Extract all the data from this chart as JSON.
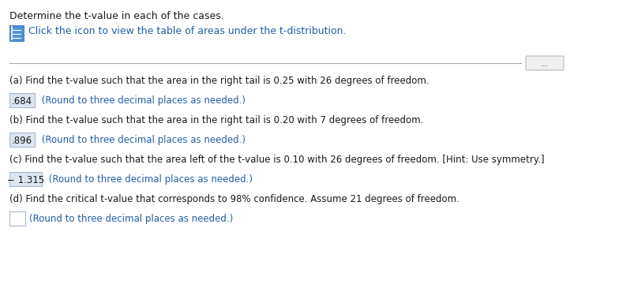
{
  "title_line1": "Determine the t-value in each of the cases.",
  "title_line2": "Click the icon to view the table of areas under the t-distribution.",
  "bg_color": "#ffffff",
  "text_color_dark": "#1a1a1a",
  "text_color_blue": "#1f5fa6",
  "answer_bg": "#dce6f1",
  "answer_border": "#aab8cc",
  "part_a_question": "(a) Find the t-value such that the area in the right tail is 0.25 with 26 degrees of freedom.",
  "part_a_answer": ".684",
  "part_a_suffix": " (Round to three decimal places as needed.)",
  "part_b_question": "(b) Find the t-value such that the area in the right tail is 0.20 with 7 degrees of freedom.",
  "part_b_answer": ".896",
  "part_b_suffix": " (Round to three decimal places as needed.)",
  "part_c_question": "(c) Find the t-value such that the area left of the t-value is 0.10 with 26 degrees of freedom. [Hint: Use symmetry.]",
  "part_c_answer": "− 1.315",
  "part_c_suffix": " (Round to three decimal places as needed.)",
  "part_d_question": "(d) Find the critical t-value that corresponds to 98% confidence. Assume 21 degrees of freedom.",
  "part_d_suffix": "(Round to three decimal places as needed.)",
  "icon_color_dark": "#2060a0",
  "icon_color_light": "#4a90d9",
  "dots_button_text": "..."
}
